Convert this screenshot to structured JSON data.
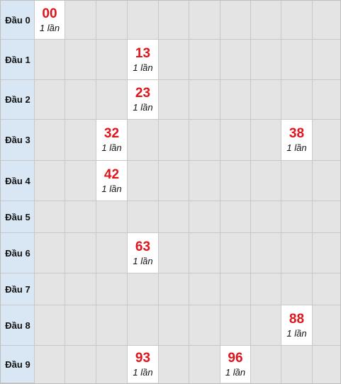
{
  "rows": [
    {
      "label": "Đầu 0"
    },
    {
      "label": "Đầu 1"
    },
    {
      "label": "Đầu 2"
    },
    {
      "label": "Đầu 3"
    },
    {
      "label": "Đầu 4"
    },
    {
      "label": "Đầu 5"
    },
    {
      "label": "Đầu 6"
    },
    {
      "label": "Đầu 7"
    },
    {
      "label": "Đầu 8"
    },
    {
      "label": "Đầu 9"
    }
  ],
  "cells": [
    {
      "row": 0,
      "col": 0,
      "number": "00",
      "count": "1 lần"
    },
    {
      "row": 1,
      "col": 3,
      "number": "13",
      "count": "1 lần"
    },
    {
      "row": 2,
      "col": 3,
      "number": "23",
      "count": "1 lần"
    },
    {
      "row": 3,
      "col": 2,
      "number": "32",
      "count": "1 lần"
    },
    {
      "row": 3,
      "col": 8,
      "number": "38",
      "count": "1 lần"
    },
    {
      "row": 4,
      "col": 2,
      "number": "42",
      "count": "1 lần"
    },
    {
      "row": 6,
      "col": 3,
      "number": "63",
      "count": "1 lần"
    },
    {
      "row": 8,
      "col": 8,
      "number": "88",
      "count": "1 lần"
    },
    {
      "row": 9,
      "col": 3,
      "number": "93",
      "count": "1 lần"
    },
    {
      "row": 9,
      "col": 6,
      "number": "96",
      "count": "1 lần"
    }
  ],
  "colors": {
    "number": "#e0141b",
    "label_bg": "#d9e7f4",
    "empty_cell": "#e4e4e4",
    "filled_cell": "#ffffff"
  }
}
